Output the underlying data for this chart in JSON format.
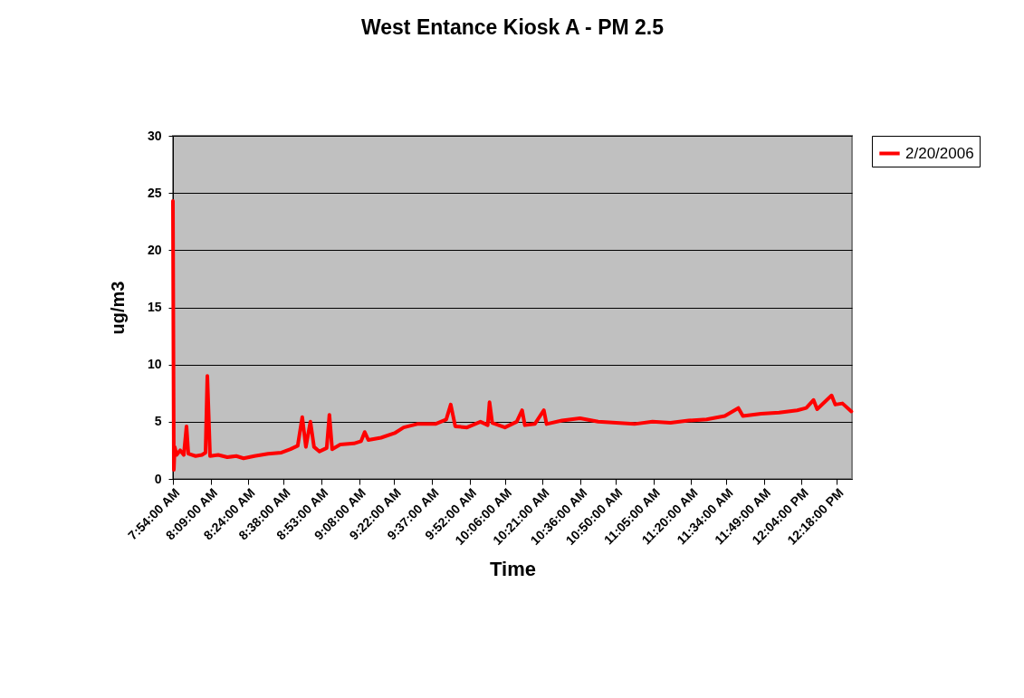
{
  "chart_data": {
    "type": "line",
    "title": "West Entance Kiosk A - PM 2.5",
    "xlabel": "Time",
    "ylabel": "ug/m3",
    "xlim": [
      7.9,
      12.4
    ],
    "xticks": [
      {
        "value": 7.9,
        "label": "7:54:00 AM"
      },
      {
        "value": 8.15,
        "label": "8:09:00 AM"
      },
      {
        "value": 8.4,
        "label": "8:24:00 AM"
      },
      {
        "value": 8.6333,
        "label": "8:38:00 AM"
      },
      {
        "value": 8.8833,
        "label": "8:53:00 AM"
      },
      {
        "value": 9.1333,
        "label": "9:08:00 AM"
      },
      {
        "value": 9.3667,
        "label": "9:22:00 AM"
      },
      {
        "value": 9.6167,
        "label": "9:37:00 AM"
      },
      {
        "value": 9.8667,
        "label": "9:52:00 AM"
      },
      {
        "value": 10.1,
        "label": "10:06:00 AM"
      },
      {
        "value": 10.35,
        "label": "10:21:00 AM"
      },
      {
        "value": 10.6,
        "label": "10:36:00 AM"
      },
      {
        "value": 10.8333,
        "label": "10:50:00 AM"
      },
      {
        "value": 11.0833,
        "label": "11:05:00 AM"
      },
      {
        "value": 11.3333,
        "label": "11:20:00 AM"
      },
      {
        "value": 11.5667,
        "label": "11:34:00 AM"
      },
      {
        "value": 11.8167,
        "label": "11:49:00 AM"
      },
      {
        "value": 12.0667,
        "label": "12:04:00 PM"
      },
      {
        "value": 12.3,
        "label": "12:18:00 PM"
      }
    ],
    "ylim": [
      0,
      30
    ],
    "yticks": [
      0,
      5,
      10,
      15,
      20,
      25,
      30
    ],
    "grid": "y",
    "legend": "top right",
    "marker": "none",
    "line_style": "solid",
    "series": [
      {
        "name": "2/20/2006",
        "color": "#ff0000",
        "x": [
          7.9,
          7.906,
          7.912,
          7.924,
          7.948,
          7.972,
          7.99,
          8.002,
          8.05,
          8.092,
          8.116,
          8.128,
          8.146,
          8.2,
          8.26,
          8.32,
          8.368,
          8.44,
          8.53,
          8.619,
          8.679,
          8.727,
          8.757,
          8.781,
          8.811,
          8.835,
          8.871,
          8.919,
          8.937,
          8.955,
          9.009,
          9.099,
          9.147,
          9.171,
          9.195,
          9.279,
          9.369,
          9.429,
          9.519,
          9.639,
          9.711,
          9.741,
          9.771,
          9.849,
          9.938,
          9.986,
          9.998,
          10.016,
          10.1,
          10.178,
          10.214,
          10.232,
          10.298,
          10.358,
          10.376,
          10.478,
          10.598,
          10.718,
          10.838,
          10.958,
          11.078,
          11.197,
          11.317,
          11.437,
          11.557,
          11.647,
          11.677,
          11.797,
          11.917,
          12.037,
          12.097,
          12.145,
          12.169,
          12.265,
          12.289,
          12.337,
          12.396
        ],
        "values": [
          24.3,
          0.8,
          2.8,
          2.1,
          2.5,
          2.1,
          4.6,
          2.2,
          2.0,
          2.1,
          2.3,
          9.0,
          2.0,
          2.1,
          1.9,
          2.0,
          1.8,
          2.0,
          2.2,
          2.3,
          2.6,
          2.9,
          5.4,
          2.8,
          5.0,
          2.8,
          2.4,
          2.7,
          5.6,
          2.6,
          3.0,
          3.1,
          3.3,
          4.1,
          3.4,
          3.6,
          4.0,
          4.5,
          4.8,
          4.8,
          5.2,
          6.5,
          4.6,
          4.5,
          5.0,
          4.7,
          6.7,
          4.9,
          4.5,
          5.0,
          6.0,
          4.7,
          4.8,
          6.0,
          4.8,
          5.1,
          5.3,
          5.0,
          4.9,
          4.8,
          5.0,
          4.9,
          5.1,
          5.2,
          5.5,
          6.2,
          5.5,
          5.7,
          5.8,
          6.0,
          6.2,
          6.9,
          6.1,
          7.3,
          6.5,
          6.6,
          5.9
        ]
      }
    ]
  }
}
